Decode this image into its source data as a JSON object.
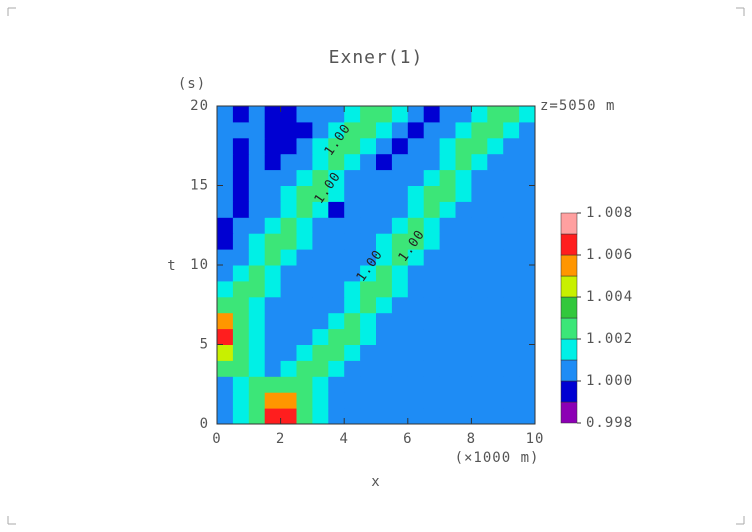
{
  "chart_data": {
    "type": "contour",
    "title": "Exner(1)",
    "x_label": "x",
    "x_unit": "(×1000 m)",
    "y_label": "t",
    "y_unit": "(s)",
    "annotation": "z=5050 m",
    "contour_labels": [
      "1.00",
      "1.00",
      "1.00",
      "1.00"
    ],
    "xlim": [
      0,
      10
    ],
    "ylim": [
      0,
      20
    ],
    "xticks": [
      0,
      2,
      4,
      6,
      8,
      10
    ],
    "yticks": [
      0,
      5,
      10,
      15,
      20
    ],
    "x": [
      0.25,
      0.75,
      1.25,
      1.75,
      2.25,
      2.75,
      3.25,
      3.75,
      4.25,
      4.75,
      5.25,
      5.75,
      6.25,
      6.75,
      7.25,
      7.75,
      8.25,
      8.75,
      9.25,
      9.75
    ],
    "y": [
      0.5,
      1.5,
      2.5,
      3.5,
      4.5,
      5.5,
      6.5,
      7.5,
      8.5,
      9.5,
      10.5,
      11.5,
      12.5,
      13.5,
      14.5,
      15.5,
      16.5,
      17.5,
      18.5,
      19.5
    ],
    "z": [
      [
        1.0005,
        1.0015,
        1.0025,
        1.0065,
        1.0065,
        1.0025,
        1.0015,
        1.0005,
        1.0005,
        1.0005,
        1.0005,
        1.0005,
        1.0005,
        1.0005,
        1.0005,
        1.0005,
        1.0005,
        1.0005,
        1.0005,
        1.0005
      ],
      [
        1.0005,
        1.0015,
        1.0025,
        1.0055,
        1.0055,
        1.0025,
        1.0015,
        1.0005,
        1.0005,
        1.0005,
        1.0005,
        1.0005,
        1.0005,
        1.0005,
        1.0005,
        1.0005,
        1.0005,
        1.0005,
        1.0005,
        1.0005
      ],
      [
        1.0005,
        1.0015,
        1.0025,
        1.0025,
        1.0025,
        1.0025,
        1.0015,
        1.0005,
        1.0005,
        1.0005,
        1.0005,
        1.0005,
        1.0005,
        1.0005,
        1.0005,
        1.0005,
        1.0005,
        1.0005,
        1.0005,
        1.0005
      ],
      [
        1.0025,
        1.0025,
        1.0015,
        1.0005,
        1.0015,
        1.0025,
        1.0025,
        1.0015,
        1.0005,
        1.0005,
        1.0005,
        1.0005,
        1.0005,
        1.0005,
        1.0005,
        1.0005,
        1.0005,
        1.0005,
        1.0005,
        1.0005
      ],
      [
        1.0045,
        1.0025,
        1.0015,
        1.0005,
        1.0005,
        1.0015,
        1.0025,
        1.0025,
        1.0015,
        1.0005,
        1.0005,
        1.0005,
        1.0005,
        1.0005,
        1.0005,
        1.0005,
        1.0005,
        1.0005,
        1.0005,
        1.0005
      ],
      [
        1.0065,
        1.0025,
        1.0015,
        1.0005,
        1.0005,
        1.0005,
        1.0015,
        1.0025,
        1.0025,
        1.0015,
        1.0005,
        1.0005,
        1.0005,
        1.0005,
        1.0005,
        1.0005,
        1.0005,
        1.0005,
        1.0005,
        1.0005
      ],
      [
        1.0055,
        1.0025,
        1.0015,
        1.0005,
        1.0005,
        1.0005,
        1.0005,
        1.0015,
        1.0025,
        1.0015,
        1.0005,
        1.0005,
        1.0005,
        1.0005,
        1.0005,
        1.0005,
        1.0005,
        1.0005,
        1.0005,
        1.0005
      ],
      [
        1.0025,
        1.0025,
        1.0015,
        1.0005,
        1.0005,
        1.0005,
        1.0005,
        1.0005,
        1.0015,
        1.0025,
        1.0015,
        1.0005,
        1.0005,
        1.0005,
        1.0005,
        1.0005,
        1.0005,
        1.0005,
        1.0005,
        1.0005
      ],
      [
        1.0015,
        1.0025,
        1.0025,
        1.0015,
        1.0005,
        1.0005,
        1.0005,
        1.0005,
        1.0015,
        1.0025,
        1.0025,
        1.0015,
        1.0005,
        1.0005,
        1.0005,
        1.0005,
        1.0005,
        1.0005,
        1.0005,
        1.0005
      ],
      [
        1.0005,
        1.0015,
        1.0025,
        1.0015,
        1.0005,
        1.0005,
        1.0005,
        1.0005,
        1.0005,
        1.0015,
        1.0025,
        1.0015,
        1.0005,
        1.0005,
        1.0005,
        1.0005,
        1.0005,
        1.0005,
        1.0005,
        1.0005
      ],
      [
        1.0005,
        1.0005,
        1.0015,
        1.0025,
        1.0015,
        1.0005,
        1.0005,
        1.0005,
        1.0005,
        1.0005,
        1.0015,
        1.0025,
        1.0015,
        1.0005,
        1.0005,
        1.0005,
        1.0005,
        1.0005,
        1.0005,
        1.0005
      ],
      [
        0.9995,
        1.0005,
        1.0015,
        1.0025,
        1.0025,
        1.0015,
        1.0005,
        1.0005,
        1.0005,
        1.0005,
        1.0015,
        1.0025,
        1.0025,
        1.0015,
        1.0005,
        1.0005,
        1.0005,
        1.0005,
        1.0005,
        1.0005
      ],
      [
        0.9995,
        1.0005,
        1.0005,
        1.0015,
        1.0025,
        1.0015,
        1.0005,
        1.0005,
        1.0005,
        1.0005,
        1.0005,
        1.0015,
        1.0025,
        1.0015,
        1.0005,
        1.0005,
        1.0005,
        1.0005,
        1.0005,
        1.0005
      ],
      [
        1.0005,
        0.9995,
        1.0005,
        1.0005,
        1.0015,
        1.0025,
        1.0015,
        0.9995,
        1.0005,
        1.0005,
        1.0005,
        1.0005,
        1.0015,
        1.0025,
        1.0015,
        1.0005,
        1.0005,
        1.0005,
        1.0005,
        1.0005
      ],
      [
        1.0005,
        0.9995,
        1.0005,
        1.0005,
        1.0015,
        1.0025,
        1.0025,
        1.0015,
        1.0005,
        1.0005,
        1.0005,
        1.0005,
        1.0015,
        1.0025,
        1.0025,
        1.0015,
        1.0005,
        1.0005,
        1.0005,
        1.0005
      ],
      [
        1.0005,
        0.9995,
        1.0005,
        1.0005,
        1.0005,
        1.0015,
        1.0025,
        1.0015,
        1.0005,
        1.0005,
        1.0005,
        1.0005,
        1.0005,
        1.0015,
        1.0025,
        1.0015,
        1.0005,
        1.0005,
        1.0005,
        1.0005
      ],
      [
        1.0005,
        0.9995,
        1.0005,
        0.9995,
        1.0005,
        1.0005,
        1.0015,
        1.0025,
        1.0015,
        1.0005,
        0.9995,
        1.0005,
        1.0005,
        1.0005,
        1.0015,
        1.0025,
        1.0015,
        1.0005,
        1.0005,
        1.0005
      ],
      [
        1.0005,
        0.9995,
        1.0005,
        0.9995,
        0.9995,
        1.0005,
        1.0015,
        1.0025,
        1.0025,
        1.0015,
        1.0005,
        0.9995,
        1.0005,
        1.0005,
        1.0015,
        1.0025,
        1.0025,
        1.0015,
        1.0005,
        1.0005
      ],
      [
        1.0005,
        1.0005,
        1.0005,
        0.9995,
        0.9995,
        0.9995,
        1.0005,
        1.0015,
        1.0025,
        1.0025,
        1.0015,
        1.0005,
        0.9995,
        1.0005,
        1.0005,
        1.0015,
        1.0025,
        1.0025,
        1.0015,
        1.0005
      ],
      [
        1.0005,
        0.9995,
        1.0005,
        0.9995,
        0.9995,
        1.0005,
        1.0005,
        1.0005,
        1.0015,
        1.0025,
        1.0025,
        1.0015,
        1.0005,
        0.9995,
        1.0005,
        1.0005,
        1.0015,
        1.0025,
        1.0025,
        1.0015
      ]
    ],
    "levels": [
      0.998,
      0.999,
      1,
      1.001,
      1.002,
      1.003,
      1.004,
      1.005,
      1.006,
      1.007,
      1.008
    ],
    "colors": [
      "#8c00b4",
      "#0000d2",
      "#1e8cf5",
      "#00f0e6",
      "#3ce678",
      "#32c83c",
      "#c8f000",
      "#ff9600",
      "#ff1e1e",
      "#ffa0a0"
    ],
    "colorbar_ticks": [
      0.998,
      {
        "value": 1,
        "label": "1.000"
      },
      1.002,
      1.004,
      1.006,
      1.008
    ]
  }
}
